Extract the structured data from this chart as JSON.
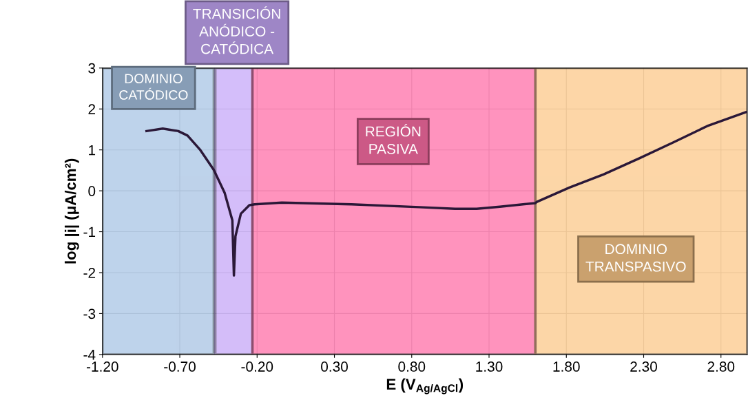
{
  "chart_data": {
    "type": "line",
    "xlabel": "E (V$_{Ag/AgCl}$)",
    "ylabel": "log |i| (μA/cm²)",
    "series": [
      {
        "color": "#2b1838",
        "x": [
          -0.915,
          -0.81,
          -0.71,
          -0.65,
          -0.57,
          -0.48,
          -0.41,
          -0.36,
          -0.35,
          -0.34,
          -0.305,
          -0.25,
          -0.216,
          -0.04,
          0.41,
          0.85,
          1.08,
          1.22,
          1.37,
          1.6,
          1.61,
          1.82,
          2.04,
          2.27,
          2.49,
          2.71,
          2.96
        ],
        "values": [
          1.46,
          1.52,
          1.46,
          1.35,
          1.01,
          0.51,
          -0.05,
          -0.72,
          -2.07,
          -1.11,
          -0.56,
          -0.35,
          -0.33,
          -0.29,
          -0.33,
          -0.4,
          -0.44,
          -0.44,
          -0.39,
          -0.3,
          -0.27,
          0.08,
          0.4,
          0.79,
          1.18,
          1.58,
          1.92
        ]
      }
    ],
    "xlim": [
      -1.2,
      2.97
    ],
    "ylim": [
      -4,
      3
    ],
    "xticks": [
      {
        "value": -1.2,
        "label": "-1.20"
      },
      {
        "value": -0.7,
        "label": "-0.70"
      },
      {
        "value": -0.2,
        "label": "-0.20"
      },
      {
        "value": 0.3,
        "label": "0.30"
      },
      {
        "value": 0.8,
        "label": "0.80"
      },
      {
        "value": 1.3,
        "label": "1.30"
      },
      {
        "value": 1.8,
        "label": "1.80"
      },
      {
        "value": 2.3,
        "label": "2.30"
      },
      {
        "value": 2.8,
        "label": "2.80"
      }
    ],
    "yticks": [
      -4,
      -3,
      -2,
      -1,
      0,
      1,
      2,
      3
    ],
    "bands": [
      {
        "axis": "x",
        "from": -1.2,
        "to": -0.48,
        "label": "DOMINIO\nCATÓDICO",
        "color": "#a9c4e4"
      },
      {
        "axis": "x",
        "from": -0.47,
        "to": -0.23,
        "label": "TRANSICIÓN\nANÓDICO -\nCATÓDICA",
        "color": "#c6a8f8"
      },
      {
        "axis": "x",
        "from": -0.23,
        "to": 1.6,
        "label": "REGIÓN\nPASIVA",
        "color": "#ff6fa8"
      },
      {
        "axis": "x",
        "from": 1.6,
        "to": 2.97,
        "label": "DOMINIO\nTRANSPASIVO",
        "color": "#fcc98a"
      }
    ],
    "grid": true
  }
}
